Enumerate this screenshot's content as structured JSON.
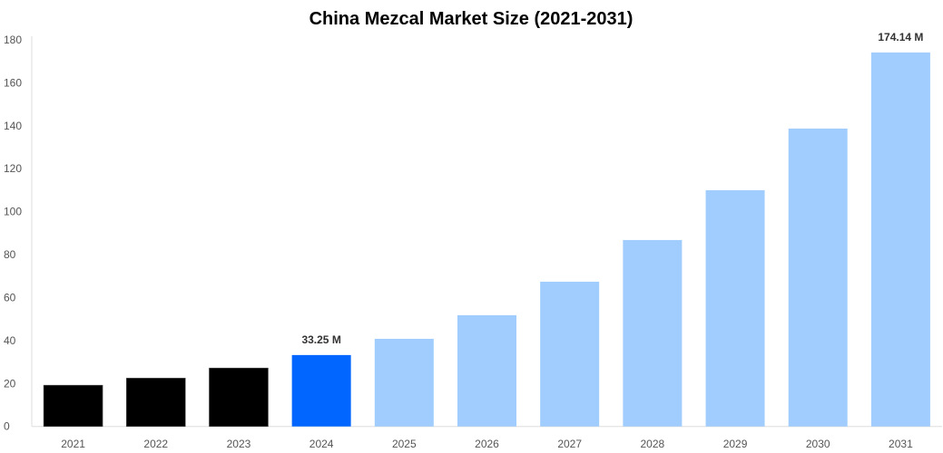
{
  "chart_data": {
    "type": "bar",
    "title": "China Mezcal Market Size (2021-2031)",
    "xlabel": "",
    "ylabel": "",
    "categories": [
      "2021",
      "2022",
      "2023",
      "2024",
      "2025",
      "2026",
      "2027",
      "2028",
      "2029",
      "2030",
      "2031"
    ],
    "values": [
      19.2,
      22.5,
      27.2,
      33.25,
      40.8,
      51.8,
      67.4,
      86.8,
      110.0,
      138.7,
      174.14
    ],
    "data_labels": {
      "3": "33.25 M",
      "10": "174.14 M"
    },
    "colors": [
      "#000000",
      "#000000",
      "#000000",
      "#0066ff",
      "#a0cdfe",
      "#a0cdfe",
      "#a0cdfe",
      "#a0cdfe",
      "#a0cdfe",
      "#a0cdfe",
      "#a0cdfe"
    ],
    "ylim": [
      0,
      180
    ],
    "yticks": [
      0,
      20,
      40,
      60,
      80,
      100,
      120,
      140,
      160,
      180
    ],
    "grid": false,
    "legend": "none"
  }
}
